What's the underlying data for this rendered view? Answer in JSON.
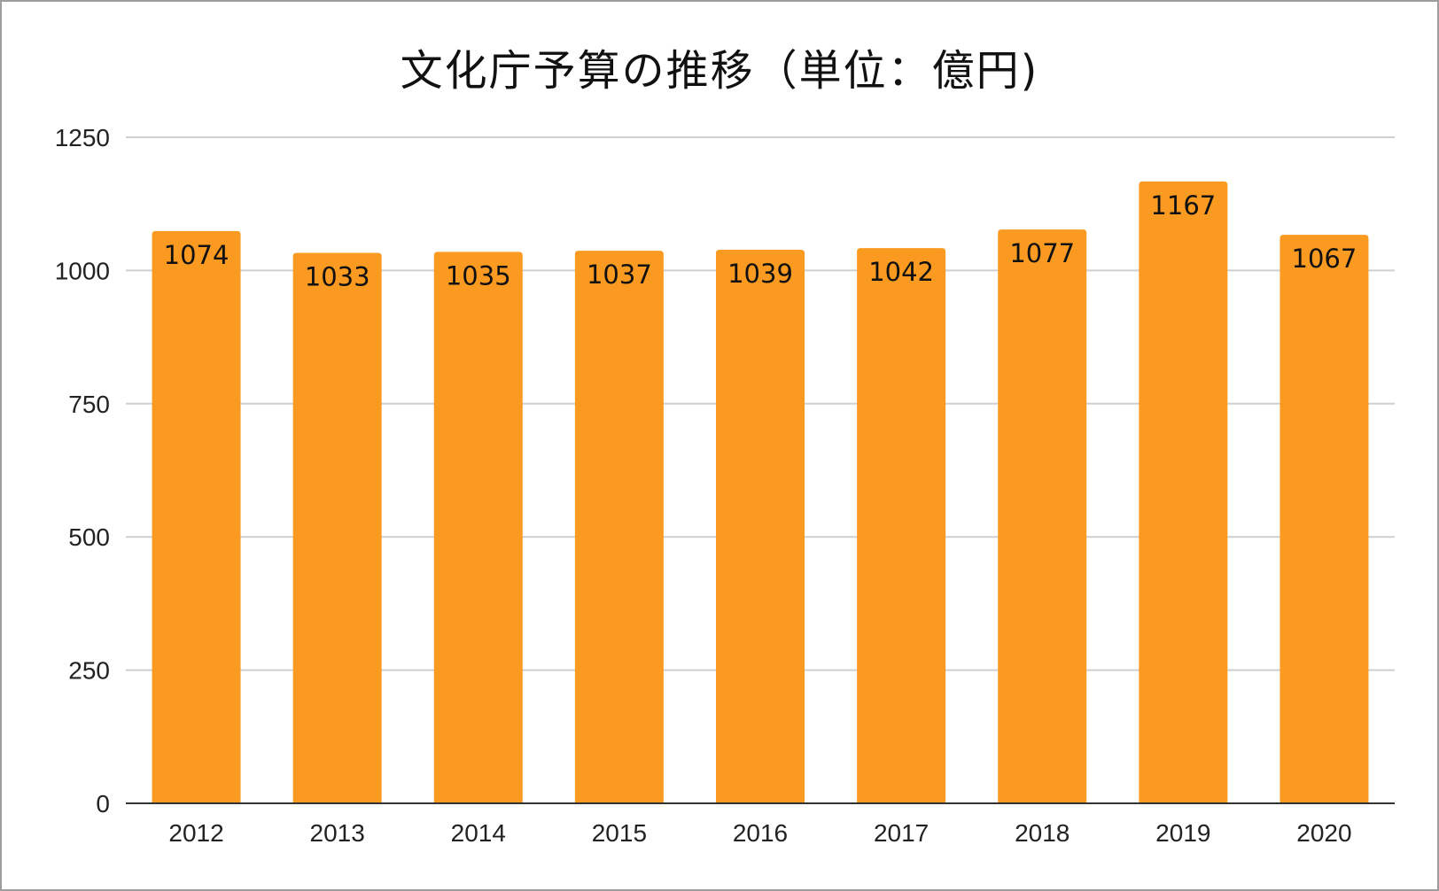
{
  "chart_data": {
    "type": "bar",
    "title": "文化庁予算の推移（単位：億円)",
    "categories": [
      "2012",
      "2013",
      "2014",
      "2015",
      "2016",
      "2017",
      "2018",
      "2019",
      "2020"
    ],
    "values": [
      1074,
      1033,
      1035,
      1037,
      1039,
      1042,
      1077,
      1167,
      1067
    ],
    "ylim": [
      0,
      1250
    ],
    "yticks": [
      "0",
      "250",
      "500",
      "750",
      "1000",
      "1250"
    ],
    "bar_color": "#fb9a21",
    "grid": true,
    "data_labels": "inside-top"
  }
}
